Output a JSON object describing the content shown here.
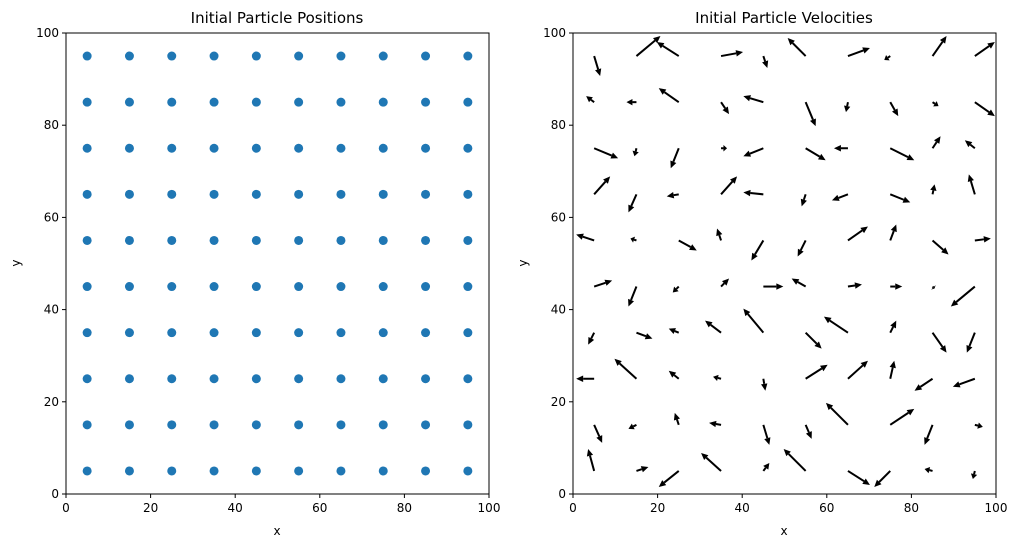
{
  "chart_data": [
    {
      "type": "scatter",
      "title": "Initial Particle Positions",
      "xlabel": "x",
      "ylabel": "y",
      "xlim": [
        0,
        100
      ],
      "ylim": [
        0,
        100
      ],
      "xticks": [
        "0",
        "20",
        "40",
        "60",
        "80",
        "100"
      ],
      "yticks": [
        "0",
        "20",
        "40",
        "60",
        "80",
        "100"
      ],
      "grid": false,
      "color": "#1f77b4",
      "grid_x_values": [
        5,
        15,
        25,
        35,
        45,
        55,
        65,
        75,
        85,
        95
      ],
      "grid_y_values": [
        5,
        15,
        25,
        35,
        45,
        55,
        65,
        75,
        85,
        95
      ]
    },
    {
      "type": "quiver",
      "title": "Initial Particle Velocities",
      "xlabel": "x",
      "ylabel": "y",
      "xlim": [
        0,
        100
      ],
      "ylim": [
        0,
        100
      ],
      "xticks": [
        "0",
        "20",
        "40",
        "60",
        "80",
        "100"
      ],
      "yticks": [
        "0",
        "20",
        "40",
        "60",
        "80",
        "100"
      ],
      "grid": false,
      "color": "#000000",
      "vectors": [
        {
          "x": 5,
          "y": 95,
          "u": 0.3,
          "v": -1.0
        },
        {
          "x": 15,
          "y": 95,
          "u": 1.2,
          "v": 1.0
        },
        {
          "x": 25,
          "y": 95,
          "u": -1.1,
          "v": 0.7
        },
        {
          "x": 35,
          "y": 95,
          "u": 1.1,
          "v": 0.2
        },
        {
          "x": 45,
          "y": 95,
          "u": 0.2,
          "v": -0.6
        },
        {
          "x": 55,
          "y": 95,
          "u": -0.9,
          "v": 0.9
        },
        {
          "x": 65,
          "y": 95,
          "u": 1.1,
          "v": 0.4
        },
        {
          "x": 75,
          "y": 95,
          "u": -0.3,
          "v": -0.2
        },
        {
          "x": 85,
          "y": 95,
          "u": 0.7,
          "v": 1.0
        },
        {
          "x": 95,
          "y": 95,
          "u": 1.0,
          "v": 0.7
        },
        {
          "x": 5,
          "y": 85,
          "u": -0.4,
          "v": 0.3
        },
        {
          "x": 15,
          "y": 85,
          "u": -0.5,
          "v": 0.0
        },
        {
          "x": 25,
          "y": 85,
          "u": -1.0,
          "v": 0.7
        },
        {
          "x": 35,
          "y": 85,
          "u": 0.4,
          "v": -0.6
        },
        {
          "x": 45,
          "y": 85,
          "u": -1.0,
          "v": 0.3
        },
        {
          "x": 55,
          "y": 85,
          "u": 0.5,
          "v": -1.2
        },
        {
          "x": 65,
          "y": 85,
          "u": -0.1,
          "v": -0.5
        },
        {
          "x": 75,
          "y": 85,
          "u": 0.4,
          "v": -0.7
        },
        {
          "x": 85,
          "y": 85,
          "u": 0.3,
          "v": -0.2
        },
        {
          "x": 95,
          "y": 85,
          "u": 1.0,
          "v": -0.7
        },
        {
          "x": 5,
          "y": 75,
          "u": 1.2,
          "v": -0.5
        },
        {
          "x": 15,
          "y": 75,
          "u": -0.1,
          "v": -0.4
        },
        {
          "x": 25,
          "y": 75,
          "u": -0.4,
          "v": -1.0
        },
        {
          "x": 35,
          "y": 75,
          "u": 0.3,
          "v": 0.0
        },
        {
          "x": 45,
          "y": 75,
          "u": -1.0,
          "v": -0.4
        },
        {
          "x": 55,
          "y": 75,
          "u": 1.0,
          "v": -0.6
        },
        {
          "x": 65,
          "y": 75,
          "u": -0.7,
          "v": 0.0
        },
        {
          "x": 75,
          "y": 75,
          "u": 1.2,
          "v": -0.6
        },
        {
          "x": 85,
          "y": 75,
          "u": 0.4,
          "v": 0.6
        },
        {
          "x": 95,
          "y": 75,
          "u": -0.5,
          "v": 0.4
        },
        {
          "x": 5,
          "y": 65,
          "u": 0.8,
          "v": 0.9
        },
        {
          "x": 15,
          "y": 65,
          "u": -0.4,
          "v": -0.9
        },
        {
          "x": 25,
          "y": 65,
          "u": -0.6,
          "v": -0.1
        },
        {
          "x": 35,
          "y": 65,
          "u": 0.8,
          "v": 0.9
        },
        {
          "x": 45,
          "y": 65,
          "u": -1.0,
          "v": 0.1
        },
        {
          "x": 55,
          "y": 65,
          "u": -0.2,
          "v": -0.6
        },
        {
          "x": 65,
          "y": 65,
          "u": -0.8,
          "v": -0.3
        },
        {
          "x": 75,
          "y": 65,
          "u": 1.0,
          "v": -0.4
        },
        {
          "x": 85,
          "y": 65,
          "u": 0.1,
          "v": 0.5
        },
        {
          "x": 95,
          "y": 65,
          "u": -0.3,
          "v": 1.0
        },
        {
          "x": 5,
          "y": 55,
          "u": -0.9,
          "v": 0.3
        },
        {
          "x": 15,
          "y": 55,
          "u": -0.3,
          "v": 0.1
        },
        {
          "x": 25,
          "y": 55,
          "u": 0.9,
          "v": -0.5
        },
        {
          "x": 35,
          "y": 55,
          "u": -0.2,
          "v": 0.6
        },
        {
          "x": 45,
          "y": 55,
          "u": -0.6,
          "v": -1.0
        },
        {
          "x": 55,
          "y": 55,
          "u": -0.4,
          "v": -0.8
        },
        {
          "x": 65,
          "y": 55,
          "u": 1.0,
          "v": 0.7
        },
        {
          "x": 75,
          "y": 55,
          "u": 0.3,
          "v": 0.8
        },
        {
          "x": 85,
          "y": 55,
          "u": 0.8,
          "v": -0.7
        },
        {
          "x": 95,
          "y": 55,
          "u": 0.8,
          "v": 0.1
        },
        {
          "x": 5,
          "y": 45,
          "u": 0.9,
          "v": 0.3
        },
        {
          "x": 15,
          "y": 45,
          "u": -0.4,
          "v": -1.0
        },
        {
          "x": 25,
          "y": 45,
          "u": -0.3,
          "v": -0.3
        },
        {
          "x": 35,
          "y": 45,
          "u": 0.4,
          "v": 0.4
        },
        {
          "x": 45,
          "y": 45,
          "u": 1.0,
          "v": 0.0
        },
        {
          "x": 55,
          "y": 45,
          "u": -0.7,
          "v": 0.4
        },
        {
          "x": 65,
          "y": 45,
          "u": 0.7,
          "v": 0.1
        },
        {
          "x": 75,
          "y": 45,
          "u": 0.6,
          "v": 0.0
        },
        {
          "x": 85,
          "y": 45,
          "u": 0.1,
          "v": -0.1
        },
        {
          "x": 95,
          "y": 45,
          "u": -1.2,
          "v": -1.0
        },
        {
          "x": 5,
          "y": 35,
          "u": -0.3,
          "v": -0.6
        },
        {
          "x": 15,
          "y": 35,
          "u": 0.8,
          "v": -0.3
        },
        {
          "x": 25,
          "y": 35,
          "u": -0.5,
          "v": 0.2
        },
        {
          "x": 35,
          "y": 35,
          "u": -0.8,
          "v": 0.6
        },
        {
          "x": 45,
          "y": 35,
          "u": -1.0,
          "v": 1.2
        },
        {
          "x": 55,
          "y": 35,
          "u": 0.8,
          "v": -0.8
        },
        {
          "x": 65,
          "y": 35,
          "u": -1.2,
          "v": 0.8
        },
        {
          "x": 75,
          "y": 35,
          "u": 0.3,
          "v": 0.6
        },
        {
          "x": 85,
          "y": 35,
          "u": 0.7,
          "v": -1.0
        },
        {
          "x": 95,
          "y": 35,
          "u": -0.4,
          "v": -1.0
        },
        {
          "x": 5,
          "y": 25,
          "u": -0.9,
          "v": 0.0
        },
        {
          "x": 15,
          "y": 25,
          "u": -1.1,
          "v": 1.0
        },
        {
          "x": 25,
          "y": 25,
          "u": -0.5,
          "v": 0.4
        },
        {
          "x": 35,
          "y": 25,
          "u": -0.4,
          "v": 0.1
        },
        {
          "x": 45,
          "y": 25,
          "u": 0.1,
          "v": -0.6
        },
        {
          "x": 55,
          "y": 25,
          "u": 1.1,
          "v": 0.7
        },
        {
          "x": 65,
          "y": 25,
          "u": 1.0,
          "v": 0.9
        },
        {
          "x": 75,
          "y": 25,
          "u": 0.2,
          "v": 0.9
        },
        {
          "x": 85,
          "y": 25,
          "u": -0.9,
          "v": -0.6
        },
        {
          "x": 95,
          "y": 25,
          "u": -1.1,
          "v": -0.4
        },
        {
          "x": 5,
          "y": 15,
          "u": 0.4,
          "v": -0.9
        },
        {
          "x": 15,
          "y": 15,
          "u": -0.4,
          "v": -0.2
        },
        {
          "x": 25,
          "y": 15,
          "u": -0.2,
          "v": 0.6
        },
        {
          "x": 35,
          "y": 15,
          "u": -0.6,
          "v": 0.1
        },
        {
          "x": 45,
          "y": 15,
          "u": 0.3,
          "v": -1.0
        },
        {
          "x": 55,
          "y": 15,
          "u": 0.3,
          "v": -0.7
        },
        {
          "x": 65,
          "y": 15,
          "u": -1.1,
          "v": 1.1
        },
        {
          "x": 75,
          "y": 15,
          "u": 1.2,
          "v": 0.8
        },
        {
          "x": 85,
          "y": 15,
          "u": -0.4,
          "v": -1.0
        },
        {
          "x": 95,
          "y": 15,
          "u": 0.4,
          "v": -0.1
        },
        {
          "x": 5,
          "y": 5,
          "u": -0.3,
          "v": 1.1
        },
        {
          "x": 15,
          "y": 5,
          "u": 0.6,
          "v": 0.2
        },
        {
          "x": 25,
          "y": 5,
          "u": -1.0,
          "v": -0.8
        },
        {
          "x": 35,
          "y": 5,
          "u": -1.0,
          "v": 0.9
        },
        {
          "x": 45,
          "y": 5,
          "u": 0.3,
          "v": 0.4
        },
        {
          "x": 55,
          "y": 5,
          "u": -1.1,
          "v": 1.1
        },
        {
          "x": 65,
          "y": 5,
          "u": 1.1,
          "v": -0.7
        },
        {
          "x": 75,
          "y": 5,
          "u": -0.8,
          "v": -0.8
        },
        {
          "x": 85,
          "y": 5,
          "u": -0.4,
          "v": 0.1
        },
        {
          "x": 95,
          "y": 5,
          "u": -0.1,
          "v": -0.4
        }
      ]
    }
  ]
}
